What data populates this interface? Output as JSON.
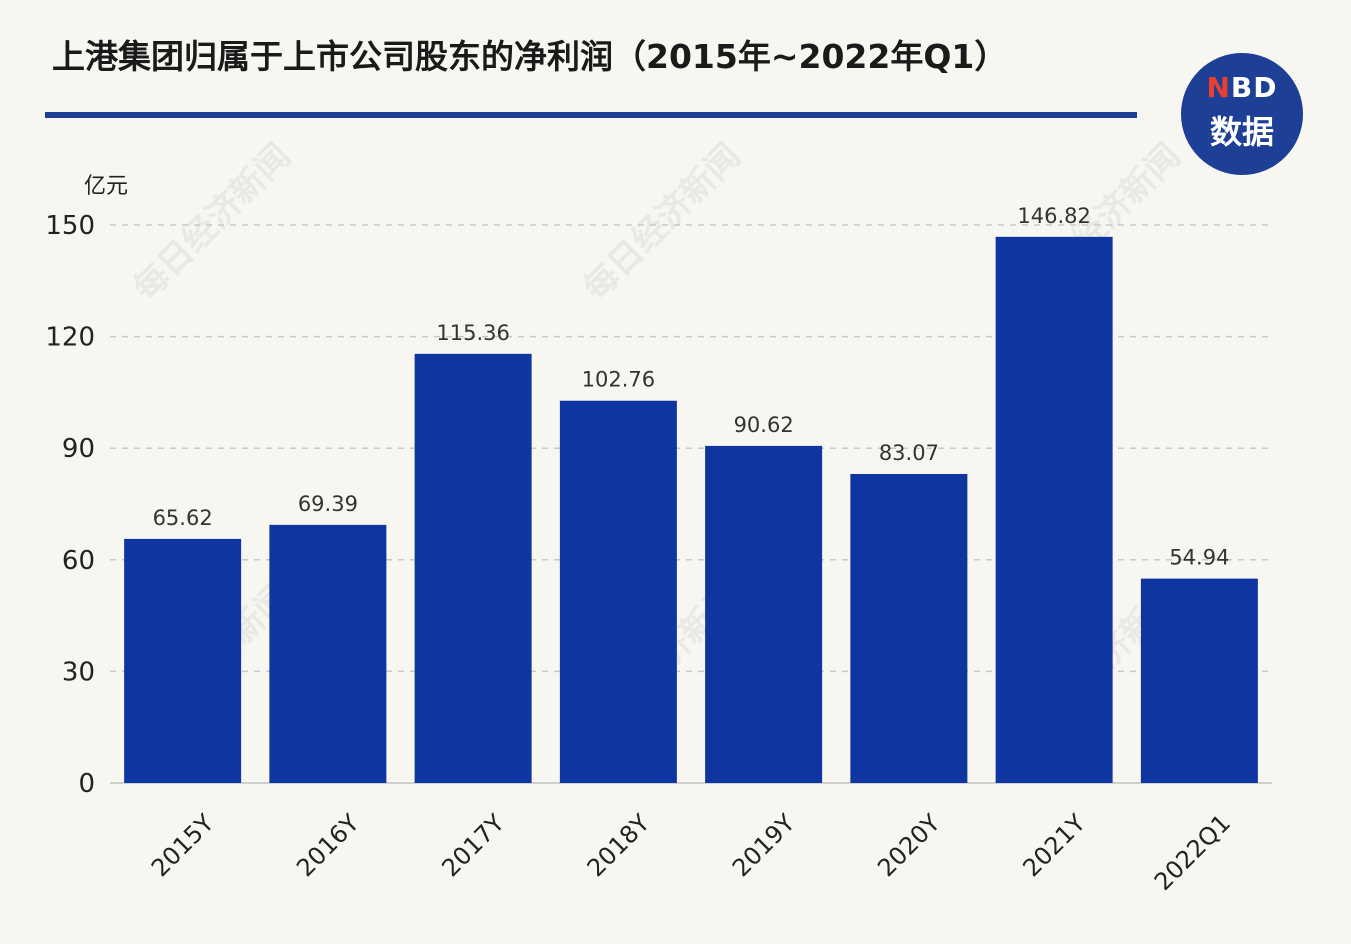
{
  "header": {
    "title": "上港集团归属于上市公司股东的净利润（2015年~2022年Q1）"
  },
  "logo": {
    "brand_prefix": "N",
    "brand_rest": "BD",
    "brand_cn": "数据",
    "bg_color": "#1d3f95",
    "accent_color": "#e8402f"
  },
  "watermark_text": "每日经济新闻",
  "chart_data": {
    "type": "bar",
    "ylabel": "亿元",
    "ylim": [
      0,
      150
    ],
    "yticks": [
      0,
      30,
      60,
      90,
      120,
      150
    ],
    "categories": [
      "2015Y",
      "2016Y",
      "2017Y",
      "2018Y",
      "2019Y",
      "2020Y",
      "2021Y",
      "2022Q1"
    ],
    "values": [
      65.62,
      69.39,
      115.36,
      102.76,
      90.62,
      83.07,
      146.82,
      54.94
    ],
    "value_labels": [
      "65.62",
      "69.39",
      "115.36",
      "102.76",
      "90.62",
      "83.07",
      "146.82",
      "54.94"
    ],
    "bar_color": "#0f36a0",
    "grid": true
  }
}
